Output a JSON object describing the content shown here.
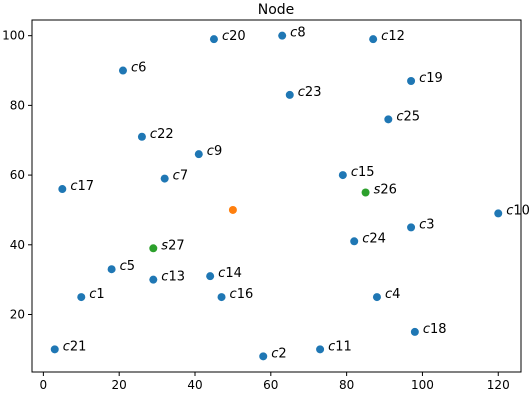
{
  "chart_data": {
    "type": "scatter",
    "title": "Node",
    "xlabel": "",
    "ylabel": "",
    "xlim": [
      -3,
      126
    ],
    "ylim": [
      3.5,
      104.5
    ],
    "xticks": [
      0,
      20,
      40,
      60,
      80,
      100,
      120
    ],
    "yticks": [
      20,
      40,
      60,
      80,
      100
    ],
    "grid": false,
    "series": [
      {
        "color": "#1f77b4",
        "points": [
          {
            "label": "c1",
            "x": 10,
            "y": 25
          },
          {
            "label": "c2",
            "x": 58,
            "y": 8
          },
          {
            "label": "c3",
            "x": 97,
            "y": 45
          },
          {
            "label": "c4",
            "x": 88,
            "y": 25
          },
          {
            "label": "c5",
            "x": 18,
            "y": 33
          },
          {
            "label": "c6",
            "x": 21,
            "y": 90
          },
          {
            "label": "c7",
            "x": 32,
            "y": 59
          },
          {
            "label": "c8",
            "x": 63,
            "y": 100
          },
          {
            "label": "c9",
            "x": 41,
            "y": 66
          },
          {
            "label": "c10",
            "x": 120,
            "y": 49
          },
          {
            "label": "c11",
            "x": 73,
            "y": 10
          },
          {
            "label": "c12",
            "x": 87,
            "y": 99
          },
          {
            "label": "c13",
            "x": 29,
            "y": 30
          },
          {
            "label": "c14",
            "x": 44,
            "y": 31
          },
          {
            "label": "c15",
            "x": 79,
            "y": 60
          },
          {
            "label": "c16",
            "x": 47,
            "y": 25
          },
          {
            "label": "c17",
            "x": 5,
            "y": 56
          },
          {
            "label": "c18",
            "x": 98,
            "y": 15
          },
          {
            "label": "c19",
            "x": 97,
            "y": 87
          },
          {
            "label": "c20",
            "x": 45,
            "y": 99
          },
          {
            "label": "c21",
            "x": 3,
            "y": 10
          },
          {
            "label": "c22",
            "x": 26,
            "y": 71
          },
          {
            "label": "c23",
            "x": 65,
            "y": 83
          },
          {
            "label": "c24",
            "x": 82,
            "y": 41
          },
          {
            "label": "c25",
            "x": 91,
            "y": 76
          }
        ]
      },
      {
        "color": "#ff7f0e",
        "points": [
          {
            "label": "",
            "x": 50,
            "y": 50
          }
        ]
      },
      {
        "color": "#2ca02c",
        "points": [
          {
            "label": "s26",
            "x": 85,
            "y": 55
          },
          {
            "label": "s27",
            "x": 29,
            "y": 39
          }
        ]
      }
    ]
  }
}
